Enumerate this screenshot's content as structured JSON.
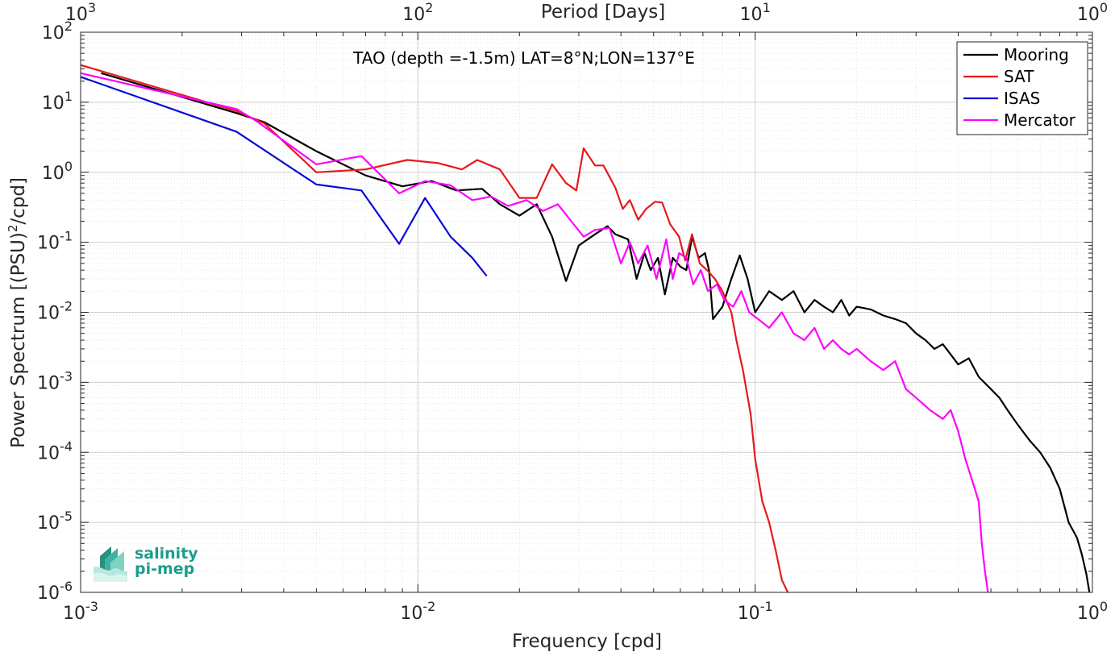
{
  "chart_data": {
    "type": "line",
    "title": "TAO (depth =-1.5m) LAT=8°N;LON=137°E",
    "xlabel": "Frequency [cpd]",
    "ylabel": "Power Spectrum [(PSU)²/cpd]",
    "ylabel_main": "Power Spectrum [(PSU)",
    "ylabel_sup": "2",
    "ylabel_tail": "/cpd]",
    "x2label": "Period [Days]",
    "xscale": "log",
    "yscale": "log",
    "xlim": [
      0.001,
      1
    ],
    "ylim": [
      1e-06,
      100
    ],
    "grid": true,
    "legend_position": "top-right",
    "x_ticks": [
      {
        "base": "10",
        "exp": "-3"
      },
      {
        "base": "10",
        "exp": "-2"
      },
      {
        "base": "10",
        "exp": "-1"
      },
      {
        "base": "10",
        "exp": "0"
      }
    ],
    "x2_ticks": [
      {
        "base": "10",
        "exp": "3"
      },
      {
        "base": "10",
        "exp": "2"
      },
      {
        "base": "10",
        "exp": "1"
      },
      {
        "base": "10",
        "exp": "0"
      }
    ],
    "y_ticks": [
      {
        "base": "10",
        "exp": "-6"
      },
      {
        "base": "10",
        "exp": "-5"
      },
      {
        "base": "10",
        "exp": "-4"
      },
      {
        "base": "10",
        "exp": "-3"
      },
      {
        "base": "10",
        "exp": "-2"
      },
      {
        "base": "10",
        "exp": "-1"
      },
      {
        "base": "10",
        "exp": "0"
      },
      {
        "base": "10",
        "exp": "1"
      },
      {
        "base": "10",
        "exp": "2"
      }
    ],
    "series": [
      {
        "name": "Mooring",
        "color": "#000000",
        "points": [
          [
            0.00115,
            26
          ],
          [
            0.0029,
            7
          ],
          [
            0.0035,
            5.2
          ],
          [
            0.005,
            2
          ],
          [
            0.007,
            0.9
          ],
          [
            0.009,
            0.63
          ],
          [
            0.011,
            0.75
          ],
          [
            0.013,
            0.55
          ],
          [
            0.0155,
            0.58
          ],
          [
            0.0175,
            0.35
          ],
          [
            0.02,
            0.24
          ],
          [
            0.0225,
            0.35
          ],
          [
            0.025,
            0.12
          ],
          [
            0.0275,
            0.028
          ],
          [
            0.03,
            0.09
          ],
          [
            0.0335,
            0.13
          ],
          [
            0.0365,
            0.17
          ],
          [
            0.0385,
            0.13
          ],
          [
            0.042,
            0.11
          ],
          [
            0.0445,
            0.03
          ],
          [
            0.047,
            0.07
          ],
          [
            0.049,
            0.04
          ],
          [
            0.0515,
            0.06
          ],
          [
            0.054,
            0.018
          ],
          [
            0.057,
            0.06
          ],
          [
            0.06,
            0.045
          ],
          [
            0.0625,
            0.04
          ],
          [
            0.065,
            0.12
          ],
          [
            0.068,
            0.06
          ],
          [
            0.071,
            0.07
          ],
          [
            0.073,
            0.04
          ],
          [
            0.075,
            0.008
          ],
          [
            0.08,
            0.012
          ],
          [
            0.085,
            0.03
          ],
          [
            0.09,
            0.065
          ],
          [
            0.095,
            0.03
          ],
          [
            0.1,
            0.01
          ],
          [
            0.11,
            0.02
          ],
          [
            0.12,
            0.015
          ],
          [
            0.13,
            0.02
          ],
          [
            0.14,
            0.01
          ],
          [
            0.15,
            0.015
          ],
          [
            0.16,
            0.012
          ],
          [
            0.17,
            0.01
          ],
          [
            0.18,
            0.015
          ],
          [
            0.19,
            0.009
          ],
          [
            0.2,
            0.012
          ],
          [
            0.22,
            0.011
          ],
          [
            0.24,
            0.009
          ],
          [
            0.26,
            0.008
          ],
          [
            0.28,
            0.007
          ],
          [
            0.3,
            0.005
          ],
          [
            0.32,
            0.004
          ],
          [
            0.34,
            0.003
          ],
          [
            0.36,
            0.0035
          ],
          [
            0.38,
            0.0025
          ],
          [
            0.4,
            0.0018
          ],
          [
            0.43,
            0.0022
          ],
          [
            0.46,
            0.0012
          ],
          [
            0.5,
            0.0008
          ],
          [
            0.53,
            0.0006
          ],
          [
            0.56,
            0.0004
          ],
          [
            0.6,
            0.00025
          ],
          [
            0.65,
            0.00015
          ],
          [
            0.7,
            0.0001
          ],
          [
            0.75,
            6e-05
          ],
          [
            0.8,
            3e-05
          ],
          [
            0.85,
            1e-05
          ],
          [
            0.9,
            6e-06
          ],
          [
            0.93,
            3.5e-06
          ],
          [
            0.96,
            1.8e-06
          ],
          [
            0.98,
            1e-06
          ]
        ]
      },
      {
        "name": "SAT",
        "color": "#e41a1c",
        "points": [
          [
            0.001,
            34
          ],
          [
            0.0029,
            7.5
          ],
          [
            0.0035,
            5
          ],
          [
            0.005,
            1
          ],
          [
            0.007,
            1.1
          ],
          [
            0.0093,
            1.5
          ],
          [
            0.0115,
            1.35
          ],
          [
            0.0135,
            1.1
          ],
          [
            0.015,
            1.5
          ],
          [
            0.0175,
            1.1
          ],
          [
            0.02,
            0.43
          ],
          [
            0.0225,
            0.43
          ],
          [
            0.025,
            1.3
          ],
          [
            0.0275,
            0.7
          ],
          [
            0.0295,
            0.55
          ],
          [
            0.031,
            2.2
          ],
          [
            0.0335,
            1.25
          ],
          [
            0.0355,
            1.25
          ],
          [
            0.0385,
            0.6
          ],
          [
            0.0405,
            0.3
          ],
          [
            0.0425,
            0.4
          ],
          [
            0.045,
            0.21
          ],
          [
            0.0475,
            0.3
          ],
          [
            0.0505,
            0.38
          ],
          [
            0.053,
            0.37
          ],
          [
            0.056,
            0.18
          ],
          [
            0.0595,
            0.12
          ],
          [
            0.062,
            0.055
          ],
          [
            0.065,
            0.13
          ],
          [
            0.0685,
            0.05
          ],
          [
            0.072,
            0.04
          ],
          [
            0.076,
            0.03
          ],
          [
            0.08,
            0.02
          ],
          [
            0.085,
            0.01
          ],
          [
            0.088,
            0.004
          ],
          [
            0.092,
            0.0015
          ],
          [
            0.097,
            0.00035
          ],
          [
            0.1,
            8e-05
          ],
          [
            0.105,
            2e-05
          ],
          [
            0.11,
            1e-05
          ],
          [
            0.115,
            4e-06
          ],
          [
            0.12,
            1.5e-06
          ],
          [
            0.125,
            1e-06
          ]
        ]
      },
      {
        "name": "ISAS",
        "color": "#0a0ad6",
        "points": [
          [
            0.001,
            23
          ],
          [
            0.0029,
            3.8
          ],
          [
            0.005,
            0.67
          ],
          [
            0.0068,
            0.55
          ],
          [
            0.0088,
            0.095
          ],
          [
            0.0105,
            0.43
          ],
          [
            0.0125,
            0.12
          ],
          [
            0.0145,
            0.06
          ],
          [
            0.016,
            0.033
          ]
        ]
      },
      {
        "name": "Mercator",
        "color": "#ff00ff",
        "points": [
          [
            0.001,
            26
          ],
          [
            0.0029,
            8
          ],
          [
            0.0033,
            5.5
          ],
          [
            0.005,
            1.3
          ],
          [
            0.0068,
            1.7
          ],
          [
            0.0088,
            0.5
          ],
          [
            0.0105,
            0.75
          ],
          [
            0.0125,
            0.65
          ],
          [
            0.0145,
            0.4
          ],
          [
            0.0165,
            0.45
          ],
          [
            0.0185,
            0.33
          ],
          [
            0.021,
            0.4
          ],
          [
            0.0235,
            0.28
          ],
          [
            0.026,
            0.35
          ],
          [
            0.0285,
            0.2
          ],
          [
            0.031,
            0.12
          ],
          [
            0.0335,
            0.15
          ],
          [
            0.037,
            0.16
          ],
          [
            0.04,
            0.05
          ],
          [
            0.0425,
            0.1
          ],
          [
            0.045,
            0.05
          ],
          [
            0.048,
            0.09
          ],
          [
            0.051,
            0.03
          ],
          [
            0.0545,
            0.11
          ],
          [
            0.057,
            0.03
          ],
          [
            0.0595,
            0.07
          ],
          [
            0.0625,
            0.06
          ],
          [
            0.0655,
            0.025
          ],
          [
            0.069,
            0.04
          ],
          [
            0.0725,
            0.02
          ],
          [
            0.077,
            0.025
          ],
          [
            0.081,
            0.015
          ],
          [
            0.086,
            0.012
          ],
          [
            0.091,
            0.02
          ],
          [
            0.096,
            0.01
          ],
          [
            0.102,
            0.008
          ],
          [
            0.11,
            0.006
          ],
          [
            0.12,
            0.01
          ],
          [
            0.13,
            0.005
          ],
          [
            0.14,
            0.004
          ],
          [
            0.15,
            0.006
          ],
          [
            0.16,
            0.003
          ],
          [
            0.17,
            0.004
          ],
          [
            0.18,
            0.003
          ],
          [
            0.19,
            0.0025
          ],
          [
            0.2,
            0.003
          ],
          [
            0.22,
            0.002
          ],
          [
            0.24,
            0.0015
          ],
          [
            0.26,
            0.002
          ],
          [
            0.28,
            0.0008
          ],
          [
            0.3,
            0.0006
          ],
          [
            0.33,
            0.0004
          ],
          [
            0.36,
            0.0003
          ],
          [
            0.38,
            0.0004
          ],
          [
            0.4,
            0.0002
          ],
          [
            0.42,
            8e-05
          ],
          [
            0.44,
            4e-05
          ],
          [
            0.46,
            2e-05
          ],
          [
            0.47,
            5e-06
          ],
          [
            0.48,
            2e-06
          ],
          [
            0.49,
            1e-06
          ]
        ]
      }
    ]
  },
  "logo": {
    "line1": "salinity",
    "line2": "pi-mep"
  }
}
